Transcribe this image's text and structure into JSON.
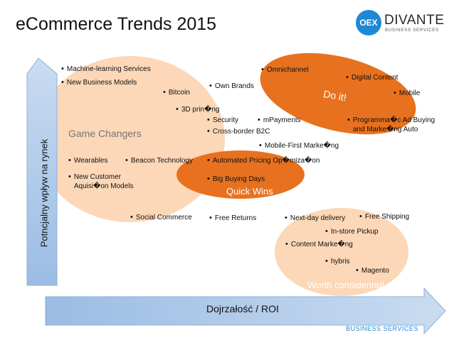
{
  "title": "eCommerce Trends 2015",
  "logo": {
    "badge": "OEX",
    "name": "DIVANTE",
    "sub": "BUSINESS SERVICES"
  },
  "axes": {
    "y_label": "Potncjalny wpływ na rynek",
    "x_label": "Dojrzałość / ROI"
  },
  "zones": {
    "game_changers": "Game Changers",
    "quick_wins": "Quick Wins",
    "do_it": "Do it!",
    "worth_considering": "Worth considering!"
  },
  "items": {
    "machine_learning": "Machine-learning Services",
    "new_business_models": "New Business Models",
    "bitcoin": "Bitcoin",
    "own_brands": "Own Brands",
    "omnichannel": "Omnichannel",
    "digital_content": "Digital Content",
    "mobile": "Mobile",
    "printing_3d": "3D prin�ng",
    "security": "Security",
    "mpayments": "mPayments",
    "cross_border": "Cross-border B2C",
    "programmatic_1": "Programma�c Ad Buying",
    "programmatic_2": "and Marke�ng Auto",
    "mobile_first": "Mobile-First Marke�ng",
    "wearables": "Wearables",
    "beacon": "Beacon Technology",
    "automated_pricing": "Automated Pricing Op�miza�on",
    "new_customer_1": "New Customer",
    "new_customer_2": "Aquisi�on Models",
    "big_buying_days": "Big Buying Days",
    "social_commerce": "Social Commerce",
    "free_returns": "Free Returns",
    "next_day": "Next-day delivery",
    "free_shipping": "Free Shipping",
    "in_store_pickup": "In-store Pickup",
    "content_marketing": "Content Marke�ng",
    "hybris": "hybris",
    "magento": "Magento"
  },
  "footer": "BUSINESS SERVICES",
  "colors": {
    "arrow": "#aac6e6",
    "peach": "#fcd7b8",
    "orange": "#e8711f",
    "brand": "#1e88d6"
  }
}
